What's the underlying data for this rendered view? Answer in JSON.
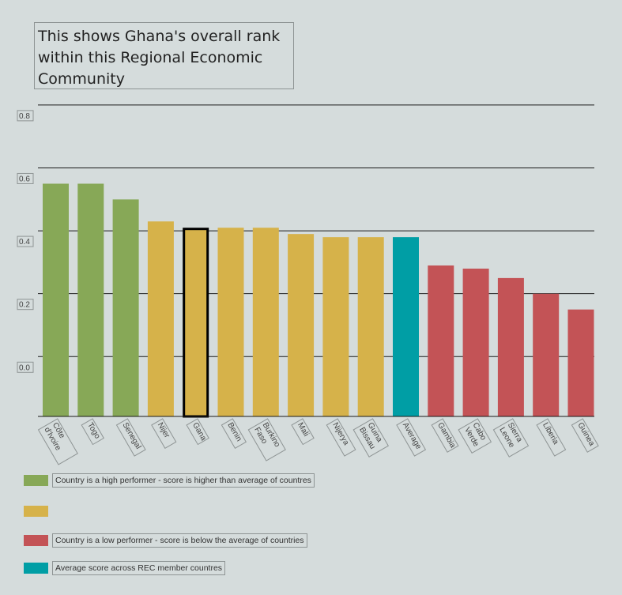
{
  "title": "This shows Ghana's overall rank within this Regional Economic Community",
  "colors": {
    "high": "#87a857",
    "mid": "#d6b24a",
    "low": "#c35356",
    "average": "#009ea5",
    "background": "#d5dcdc"
  },
  "chart_data": {
    "type": "bar",
    "categories": [
      "Côte d'Ivoire",
      "Togo",
      "Senegal",
      "Nijer",
      "Gana",
      "Benin",
      "Burkino Faso",
      "Mali",
      "Nijerya",
      "Guina Bissau",
      "Average",
      "Gambia",
      "Cabo Verde",
      "Sierra Leone",
      "Liberia",
      "Guinea"
    ],
    "values": [
      0.6,
      0.6,
      0.55,
      0.48,
      0.46,
      0.46,
      0.46,
      0.44,
      0.43,
      0.43,
      0.43,
      0.34,
      0.33,
      0.3,
      0.25,
      0.2
    ],
    "groups": [
      "high",
      "high",
      "high",
      "mid",
      "mid",
      "mid",
      "mid",
      "mid",
      "mid",
      "mid",
      "average",
      "low",
      "low",
      "low",
      "low",
      "low"
    ],
    "highlight": "Gana",
    "y_ticks": [
      "0.0",
      "0.2",
      "0.4",
      "0.6",
      "0.8"
    ],
    "ylim": [
      -0.14,
      0.8
    ],
    "xlabel": "",
    "ylabel": "",
    "grid": true
  },
  "legend": [
    {
      "key": "high",
      "label": "Country is a high performer - score is higher than average of countres"
    },
    {
      "key": "mid",
      "label": ""
    },
    {
      "key": "low",
      "label": "Country is a low performer - score is below the average of countries"
    },
    {
      "key": "average",
      "label": "Average score across REC member countres"
    }
  ]
}
